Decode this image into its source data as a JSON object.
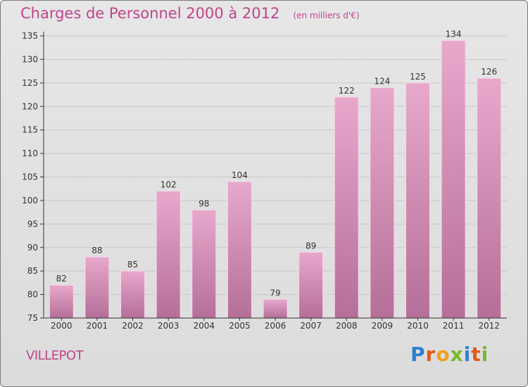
{
  "header": {
    "title": "Charges de Personnel 2000 à 2012",
    "subtitle": "(en milliers d'€)"
  },
  "footer": {
    "commune": "VILLEPOT",
    "brand": "Proxiti",
    "brand_letters": [
      {
        "ch": "P",
        "color": "#2f7fd0"
      },
      {
        "ch": "r",
        "color": "#e05a1c"
      },
      {
        "ch": "o",
        "color": "#f0a020"
      },
      {
        "ch": "x",
        "color": "#7ab82e"
      },
      {
        "ch": "i",
        "color": "#2f7fd0"
      },
      {
        "ch": "t",
        "color": "#e05a1c"
      },
      {
        "ch": "i",
        "color": "#7ab82e"
      }
    ]
  },
  "colors": {
    "bar_top": "#e8a8cc",
    "bar_bottom": "#b56f98",
    "accent": "#c0448a",
    "axis": "#333333",
    "grid": "#c8c8c8"
  },
  "chart_data": {
    "type": "bar",
    "title": "Charges de Personnel 2000 à 2012",
    "subtitle": "(en milliers d'€)",
    "xlabel": "",
    "ylabel": "",
    "categories": [
      "2000",
      "2001",
      "2002",
      "2003",
      "2004",
      "2005",
      "2006",
      "2007",
      "2008",
      "2009",
      "2010",
      "2011",
      "2012"
    ],
    "values": [
      82,
      88,
      85,
      102,
      98,
      104,
      79,
      89,
      122,
      124,
      125,
      134,
      126
    ],
    "ylim": [
      75,
      135
    ],
    "yticks": [
      75,
      80,
      85,
      90,
      95,
      100,
      105,
      110,
      115,
      120,
      125,
      130,
      135
    ],
    "grid": true,
    "legend": "none"
  }
}
